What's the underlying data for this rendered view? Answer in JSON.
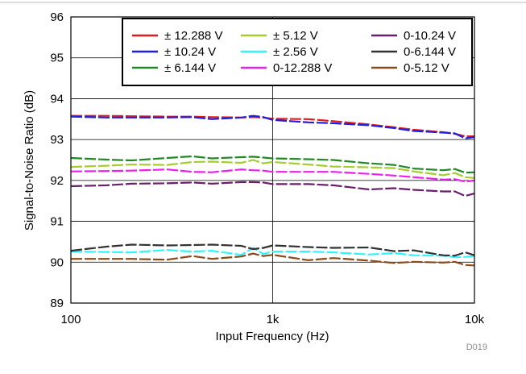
{
  "chart_data": {
    "type": "line",
    "xlabel": "Input Frequency (Hz)",
    "ylabel": "Signal-to-Noise Ratio (dB)",
    "x_scale": "log",
    "xlim": [
      100,
      10000
    ],
    "ylim": [
      89,
      96
    ],
    "x_ticks": [
      100,
      1000,
      10000
    ],
    "x_tick_labels": [
      "100",
      "1k",
      "10k"
    ],
    "y_ticks": [
      89,
      90,
      91,
      92,
      93,
      94,
      95,
      96
    ],
    "y_tick_labels": [
      "89",
      "90",
      "91",
      "92",
      "93",
      "94",
      "95",
      "96"
    ],
    "grid": true,
    "legend_position": "top-right",
    "figure_id": "D019",
    "x": [
      100,
      150,
      200,
      300,
      400,
      500,
      700,
      800,
      900,
      1000,
      1500,
      2000,
      3000,
      4000,
      5000,
      7000,
      8000,
      9000,
      10000
    ],
    "series": [
      {
        "name": "± 12.288 V",
        "color": "#e31a1c",
        "values": [
          93.58,
          93.58,
          93.57,
          93.56,
          93.56,
          93.55,
          93.54,
          93.55,
          93.54,
          93.51,
          93.5,
          93.45,
          93.37,
          93.3,
          93.24,
          93.18,
          93.14,
          93.08,
          93.08
        ]
      },
      {
        "name": "± 10.24 V",
        "color": "#1f1fe0",
        "values": [
          93.56,
          93.54,
          93.54,
          93.54,
          93.55,
          93.5,
          93.54,
          93.58,
          93.55,
          93.48,
          93.42,
          93.4,
          93.35,
          93.28,
          93.21,
          93.17,
          93.15,
          93.03,
          93.06
        ]
      },
      {
        "name": "± 6.144 V",
        "color": "#1f8a24",
        "values": [
          92.55,
          92.51,
          92.49,
          92.55,
          92.59,
          92.54,
          92.57,
          92.58,
          92.56,
          92.54,
          92.52,
          92.5,
          92.42,
          92.38,
          92.29,
          92.25,
          92.28,
          92.19,
          92.2
        ]
      },
      {
        "name": "± 5.12 V",
        "color": "#a6cc2e",
        "values": [
          92.33,
          92.36,
          92.39,
          92.38,
          92.45,
          92.46,
          92.43,
          92.5,
          92.42,
          92.45,
          92.39,
          92.34,
          92.32,
          92.3,
          92.22,
          92.13,
          92.18,
          92.08,
          92.06
        ]
      },
      {
        "name": "± 2.56 V",
        "color": "#2ff4ff",
        "values": [
          90.26,
          90.25,
          90.24,
          90.3,
          90.26,
          90.28,
          90.18,
          90.35,
          90.2,
          90.26,
          90.26,
          90.24,
          90.19,
          90.22,
          90.17,
          90.16,
          90.12,
          90.13,
          90.15
        ]
      },
      {
        "name": "0-12.288 V",
        "color": "#ee1fee",
        "values": [
          92.22,
          92.23,
          92.24,
          92.27,
          92.21,
          92.2,
          92.27,
          92.25,
          92.24,
          92.21,
          92.21,
          92.21,
          92.16,
          92.12,
          92.08,
          92.02,
          92.03,
          91.97,
          92.0
        ]
      },
      {
        "name": "0-10.24 V",
        "color": "#6b1f6b",
        "values": [
          91.86,
          91.88,
          91.92,
          91.93,
          91.95,
          91.92,
          91.96,
          91.96,
          91.95,
          91.91,
          91.91,
          91.88,
          91.78,
          91.81,
          91.77,
          91.73,
          91.73,
          91.62,
          91.68
        ]
      },
      {
        "name": "0-6.144 V",
        "color": "#333333",
        "values": [
          90.28,
          90.38,
          90.43,
          90.41,
          90.42,
          90.43,
          90.4,
          90.32,
          90.35,
          90.41,
          90.37,
          90.35,
          90.36,
          90.27,
          90.29,
          90.17,
          90.16,
          90.24,
          90.17
        ]
      },
      {
        "name": "0-5.12 V",
        "color": "#8b4a1a",
        "values": [
          90.08,
          90.08,
          90.08,
          90.06,
          90.15,
          90.08,
          90.14,
          90.21,
          90.15,
          90.18,
          90.05,
          90.1,
          90.04,
          89.98,
          90.01,
          89.99,
          90.01,
          89.93,
          89.92
        ]
      }
    ]
  }
}
